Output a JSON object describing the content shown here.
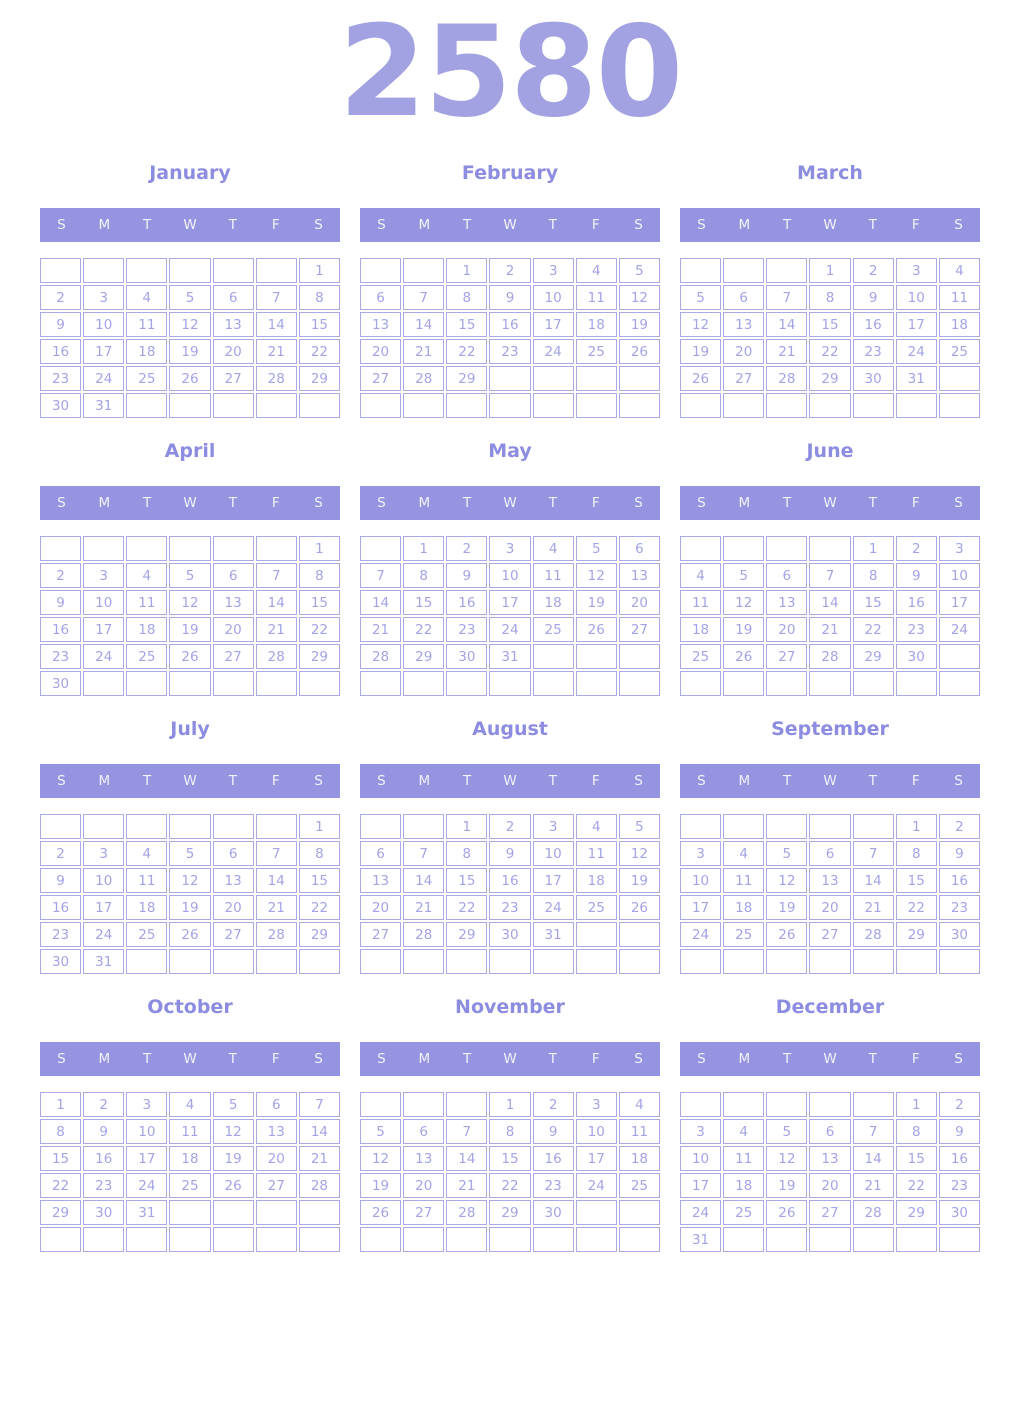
{
  "year": "2580",
  "weekdays": [
    "S",
    "M",
    "T",
    "W",
    "T",
    "F",
    "S"
  ],
  "colors": {
    "year_title": "#a2a2e2",
    "month_title": "#8c8ce0",
    "header_band": "#9494e0",
    "header_text": "#f3f3fb",
    "cell_border": "#a9a9e6",
    "day_number": "#a3a3e6",
    "background": "#ffffff"
  },
  "months": [
    {
      "name": "January",
      "weeks": [
        [
          "",
          "",
          "",
          "",
          "",
          "",
          "1"
        ],
        [
          "2",
          "3",
          "4",
          "5",
          "6",
          "7",
          "8"
        ],
        [
          "9",
          "10",
          "11",
          "12",
          "13",
          "14",
          "15"
        ],
        [
          "16",
          "17",
          "18",
          "19",
          "20",
          "21",
          "22"
        ],
        [
          "23",
          "24",
          "25",
          "26",
          "27",
          "28",
          "29"
        ],
        [
          "30",
          "31",
          "",
          "",
          "",
          "",
          ""
        ]
      ]
    },
    {
      "name": "February",
      "weeks": [
        [
          "",
          "",
          "1",
          "2",
          "3",
          "4",
          "5"
        ],
        [
          "6",
          "7",
          "8",
          "9",
          "10",
          "11",
          "12"
        ],
        [
          "13",
          "14",
          "15",
          "16",
          "17",
          "18",
          "19"
        ],
        [
          "20",
          "21",
          "22",
          "23",
          "24",
          "25",
          "26"
        ],
        [
          "27",
          "28",
          "29",
          "",
          "",
          "",
          ""
        ],
        [
          "",
          "",
          "",
          "",
          "",
          "",
          ""
        ]
      ]
    },
    {
      "name": "March",
      "weeks": [
        [
          "",
          "",
          "",
          "1",
          "2",
          "3",
          "4"
        ],
        [
          "5",
          "6",
          "7",
          "8",
          "9",
          "10",
          "11"
        ],
        [
          "12",
          "13",
          "14",
          "15",
          "16",
          "17",
          "18"
        ],
        [
          "19",
          "20",
          "21",
          "22",
          "23",
          "24",
          "25"
        ],
        [
          "26",
          "27",
          "28",
          "29",
          "30",
          "31",
          ""
        ],
        [
          "",
          "",
          "",
          "",
          "",
          "",
          ""
        ]
      ]
    },
    {
      "name": "April",
      "weeks": [
        [
          "",
          "",
          "",
          "",
          "",
          "",
          "1"
        ],
        [
          "2",
          "3",
          "4",
          "5",
          "6",
          "7",
          "8"
        ],
        [
          "9",
          "10",
          "11",
          "12",
          "13",
          "14",
          "15"
        ],
        [
          "16",
          "17",
          "18",
          "19",
          "20",
          "21",
          "22"
        ],
        [
          "23",
          "24",
          "25",
          "26",
          "27",
          "28",
          "29"
        ],
        [
          "30",
          "",
          "",
          "",
          "",
          "",
          ""
        ]
      ]
    },
    {
      "name": "May",
      "weeks": [
        [
          "",
          "1",
          "2",
          "3",
          "4",
          "5",
          "6"
        ],
        [
          "7",
          "8",
          "9",
          "10",
          "11",
          "12",
          "13"
        ],
        [
          "14",
          "15",
          "16",
          "17",
          "18",
          "19",
          "20"
        ],
        [
          "21",
          "22",
          "23",
          "24",
          "25",
          "26",
          "27"
        ],
        [
          "28",
          "29",
          "30",
          "31",
          "",
          "",
          ""
        ],
        [
          "",
          "",
          "",
          "",
          "",
          "",
          ""
        ]
      ]
    },
    {
      "name": "June",
      "weeks": [
        [
          "",
          "",
          "",
          "",
          "1",
          "2",
          "3"
        ],
        [
          "4",
          "5",
          "6",
          "7",
          "8",
          "9",
          "10"
        ],
        [
          "11",
          "12",
          "13",
          "14",
          "15",
          "16",
          "17"
        ],
        [
          "18",
          "19",
          "20",
          "21",
          "22",
          "23",
          "24"
        ],
        [
          "25",
          "26",
          "27",
          "28",
          "29",
          "30",
          ""
        ],
        [
          "",
          "",
          "",
          "",
          "",
          "",
          ""
        ]
      ]
    },
    {
      "name": "July",
      "weeks": [
        [
          "",
          "",
          "",
          "",
          "",
          "",
          "1"
        ],
        [
          "2",
          "3",
          "4",
          "5",
          "6",
          "7",
          "8"
        ],
        [
          "9",
          "10",
          "11",
          "12",
          "13",
          "14",
          "15"
        ],
        [
          "16",
          "17",
          "18",
          "19",
          "20",
          "21",
          "22"
        ],
        [
          "23",
          "24",
          "25",
          "26",
          "27",
          "28",
          "29"
        ],
        [
          "30",
          "31",
          "",
          "",
          "",
          "",
          ""
        ]
      ]
    },
    {
      "name": "August",
      "weeks": [
        [
          "",
          "",
          "1",
          "2",
          "3",
          "4",
          "5"
        ],
        [
          "6",
          "7",
          "8",
          "9",
          "10",
          "11",
          "12"
        ],
        [
          "13",
          "14",
          "15",
          "16",
          "17",
          "18",
          "19"
        ],
        [
          "20",
          "21",
          "22",
          "23",
          "24",
          "25",
          "26"
        ],
        [
          "27",
          "28",
          "29",
          "30",
          "31",
          "",
          ""
        ],
        [
          "",
          "",
          "",
          "",
          "",
          "",
          ""
        ]
      ]
    },
    {
      "name": "September",
      "weeks": [
        [
          "",
          "",
          "",
          "",
          "",
          "1",
          "2"
        ],
        [
          "3",
          "4",
          "5",
          "6",
          "7",
          "8",
          "9"
        ],
        [
          "10",
          "11",
          "12",
          "13",
          "14",
          "15",
          "16"
        ],
        [
          "17",
          "18",
          "19",
          "20",
          "21",
          "22",
          "23"
        ],
        [
          "24",
          "25",
          "26",
          "27",
          "28",
          "29",
          "30"
        ],
        [
          "",
          "",
          "",
          "",
          "",
          "",
          ""
        ]
      ]
    },
    {
      "name": "October",
      "weeks": [
        [
          "1",
          "2",
          "3",
          "4",
          "5",
          "6",
          "7"
        ],
        [
          "8",
          "9",
          "10",
          "11",
          "12",
          "13",
          "14"
        ],
        [
          "15",
          "16",
          "17",
          "18",
          "19",
          "20",
          "21"
        ],
        [
          "22",
          "23",
          "24",
          "25",
          "26",
          "27",
          "28"
        ],
        [
          "29",
          "30",
          "31",
          "",
          "",
          "",
          ""
        ],
        [
          "",
          "",
          "",
          "",
          "",
          "",
          ""
        ]
      ]
    },
    {
      "name": "November",
      "weeks": [
        [
          "",
          "",
          "",
          "1",
          "2",
          "3",
          "4"
        ],
        [
          "5",
          "6",
          "7",
          "8",
          "9",
          "10",
          "11"
        ],
        [
          "12",
          "13",
          "14",
          "15",
          "16",
          "17",
          "18"
        ],
        [
          "19",
          "20",
          "21",
          "22",
          "23",
          "24",
          "25"
        ],
        [
          "26",
          "27",
          "28",
          "29",
          "30",
          "",
          ""
        ],
        [
          "",
          "",
          "",
          "",
          "",
          "",
          ""
        ]
      ]
    },
    {
      "name": "December",
      "weeks": [
        [
          "",
          "",
          "",
          "",
          "",
          "1",
          "2"
        ],
        [
          "3",
          "4",
          "5",
          "6",
          "7",
          "8",
          "9"
        ],
        [
          "10",
          "11",
          "12",
          "13",
          "14",
          "15",
          "16"
        ],
        [
          "17",
          "18",
          "19",
          "20",
          "21",
          "22",
          "23"
        ],
        [
          "24",
          "25",
          "26",
          "27",
          "28",
          "29",
          "30"
        ],
        [
          "31",
          "",
          "",
          "",
          "",
          "",
          ""
        ]
      ]
    }
  ]
}
